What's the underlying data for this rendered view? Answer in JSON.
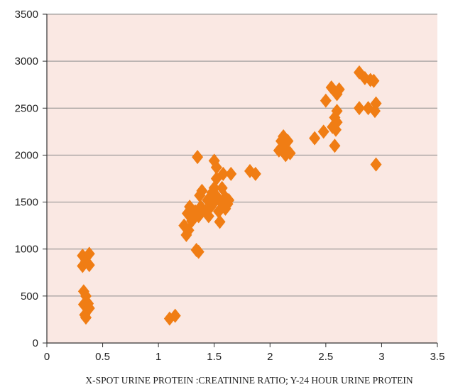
{
  "chart_data": {
    "type": "scatter",
    "title": "",
    "xlabel": "X-SPOT URINE PROTEIN :CREATININE RATIO; Y-24 HOUR URINE PROTEIN",
    "ylabel": "",
    "xlim": [
      0,
      3.5
    ],
    "ylim": [
      0,
      3500
    ],
    "x_ticks": [
      "0",
      "0.5",
      "1",
      "1.5",
      "2",
      "2.5",
      "3",
      "3.5"
    ],
    "y_ticks": [
      "0",
      "500",
      "1000",
      "1500",
      "2000",
      "2500",
      "3000",
      "3500"
    ],
    "grid": "horizontal",
    "legend": "none",
    "marker": "diamond",
    "colors": {
      "marker": "#f07d14",
      "plot_background": "#fae8e3",
      "gridline": "#8a8a8a",
      "axis": "#333333"
    },
    "series": [
      {
        "points": [
          [
            0.32,
            930
          ],
          [
            0.32,
            820
          ],
          [
            0.35,
            870
          ],
          [
            0.38,
            950
          ],
          [
            0.38,
            830
          ],
          [
            0.33,
            550
          ],
          [
            0.35,
            500
          ],
          [
            0.33,
            410
          ],
          [
            0.37,
            420
          ],
          [
            0.38,
            370
          ],
          [
            0.34,
            300
          ],
          [
            0.35,
            270
          ],
          [
            1.1,
            260
          ],
          [
            1.15,
            290
          ],
          [
            1.35,
            1980
          ],
          [
            1.34,
            990
          ],
          [
            1.36,
            970
          ],
          [
            1.23,
            1250
          ],
          [
            1.25,
            1150
          ],
          [
            1.27,
            1200
          ],
          [
            1.26,
            1380
          ],
          [
            1.28,
            1450
          ],
          [
            1.3,
            1300
          ],
          [
            1.33,
            1400
          ],
          [
            1.36,
            1350
          ],
          [
            1.38,
            1450
          ],
          [
            1.37,
            1570
          ],
          [
            1.39,
            1620
          ],
          [
            1.42,
            1400
          ],
          [
            1.44,
            1520
          ],
          [
            1.45,
            1350
          ],
          [
            1.47,
            1450
          ],
          [
            1.48,
            1600
          ],
          [
            1.5,
            1500
          ],
          [
            1.5,
            1650
          ],
          [
            1.5,
            1940
          ],
          [
            1.52,
            1870
          ],
          [
            1.52,
            1750
          ],
          [
            1.53,
            1550
          ],
          [
            1.54,
            1400
          ],
          [
            1.55,
            1290
          ],
          [
            1.56,
            1500
          ],
          [
            1.57,
            1650
          ],
          [
            1.58,
            1800
          ],
          [
            1.6,
            1550
          ],
          [
            1.6,
            1430
          ],
          [
            1.62,
            1480
          ],
          [
            1.63,
            1520
          ],
          [
            1.65,
            1800
          ],
          [
            1.82,
            1830
          ],
          [
            1.87,
            1800
          ],
          [
            2.08,
            2050
          ],
          [
            2.1,
            2150
          ],
          [
            2.12,
            2200
          ],
          [
            2.13,
            2100
          ],
          [
            2.14,
            2000
          ],
          [
            2.15,
            2050
          ],
          [
            2.16,
            2150
          ],
          [
            2.18,
            2020
          ],
          [
            2.4,
            2180
          ],
          [
            2.48,
            2250
          ],
          [
            2.5,
            2580
          ],
          [
            2.55,
            2720
          ],
          [
            2.56,
            2300
          ],
          [
            2.58,
            2100
          ],
          [
            2.58,
            2400
          ],
          [
            2.59,
            2270
          ],
          [
            2.6,
            2650
          ],
          [
            2.6,
            2470
          ],
          [
            2.6,
            2350
          ],
          [
            2.62,
            2700
          ],
          [
            2.8,
            2880
          ],
          [
            2.8,
            2500
          ],
          [
            2.85,
            2820
          ],
          [
            2.88,
            2500
          ],
          [
            2.9,
            2800
          ],
          [
            2.93,
            2790
          ],
          [
            2.94,
            2470
          ],
          [
            2.95,
            2550
          ],
          [
            2.95,
            1900
          ]
        ]
      }
    ]
  }
}
